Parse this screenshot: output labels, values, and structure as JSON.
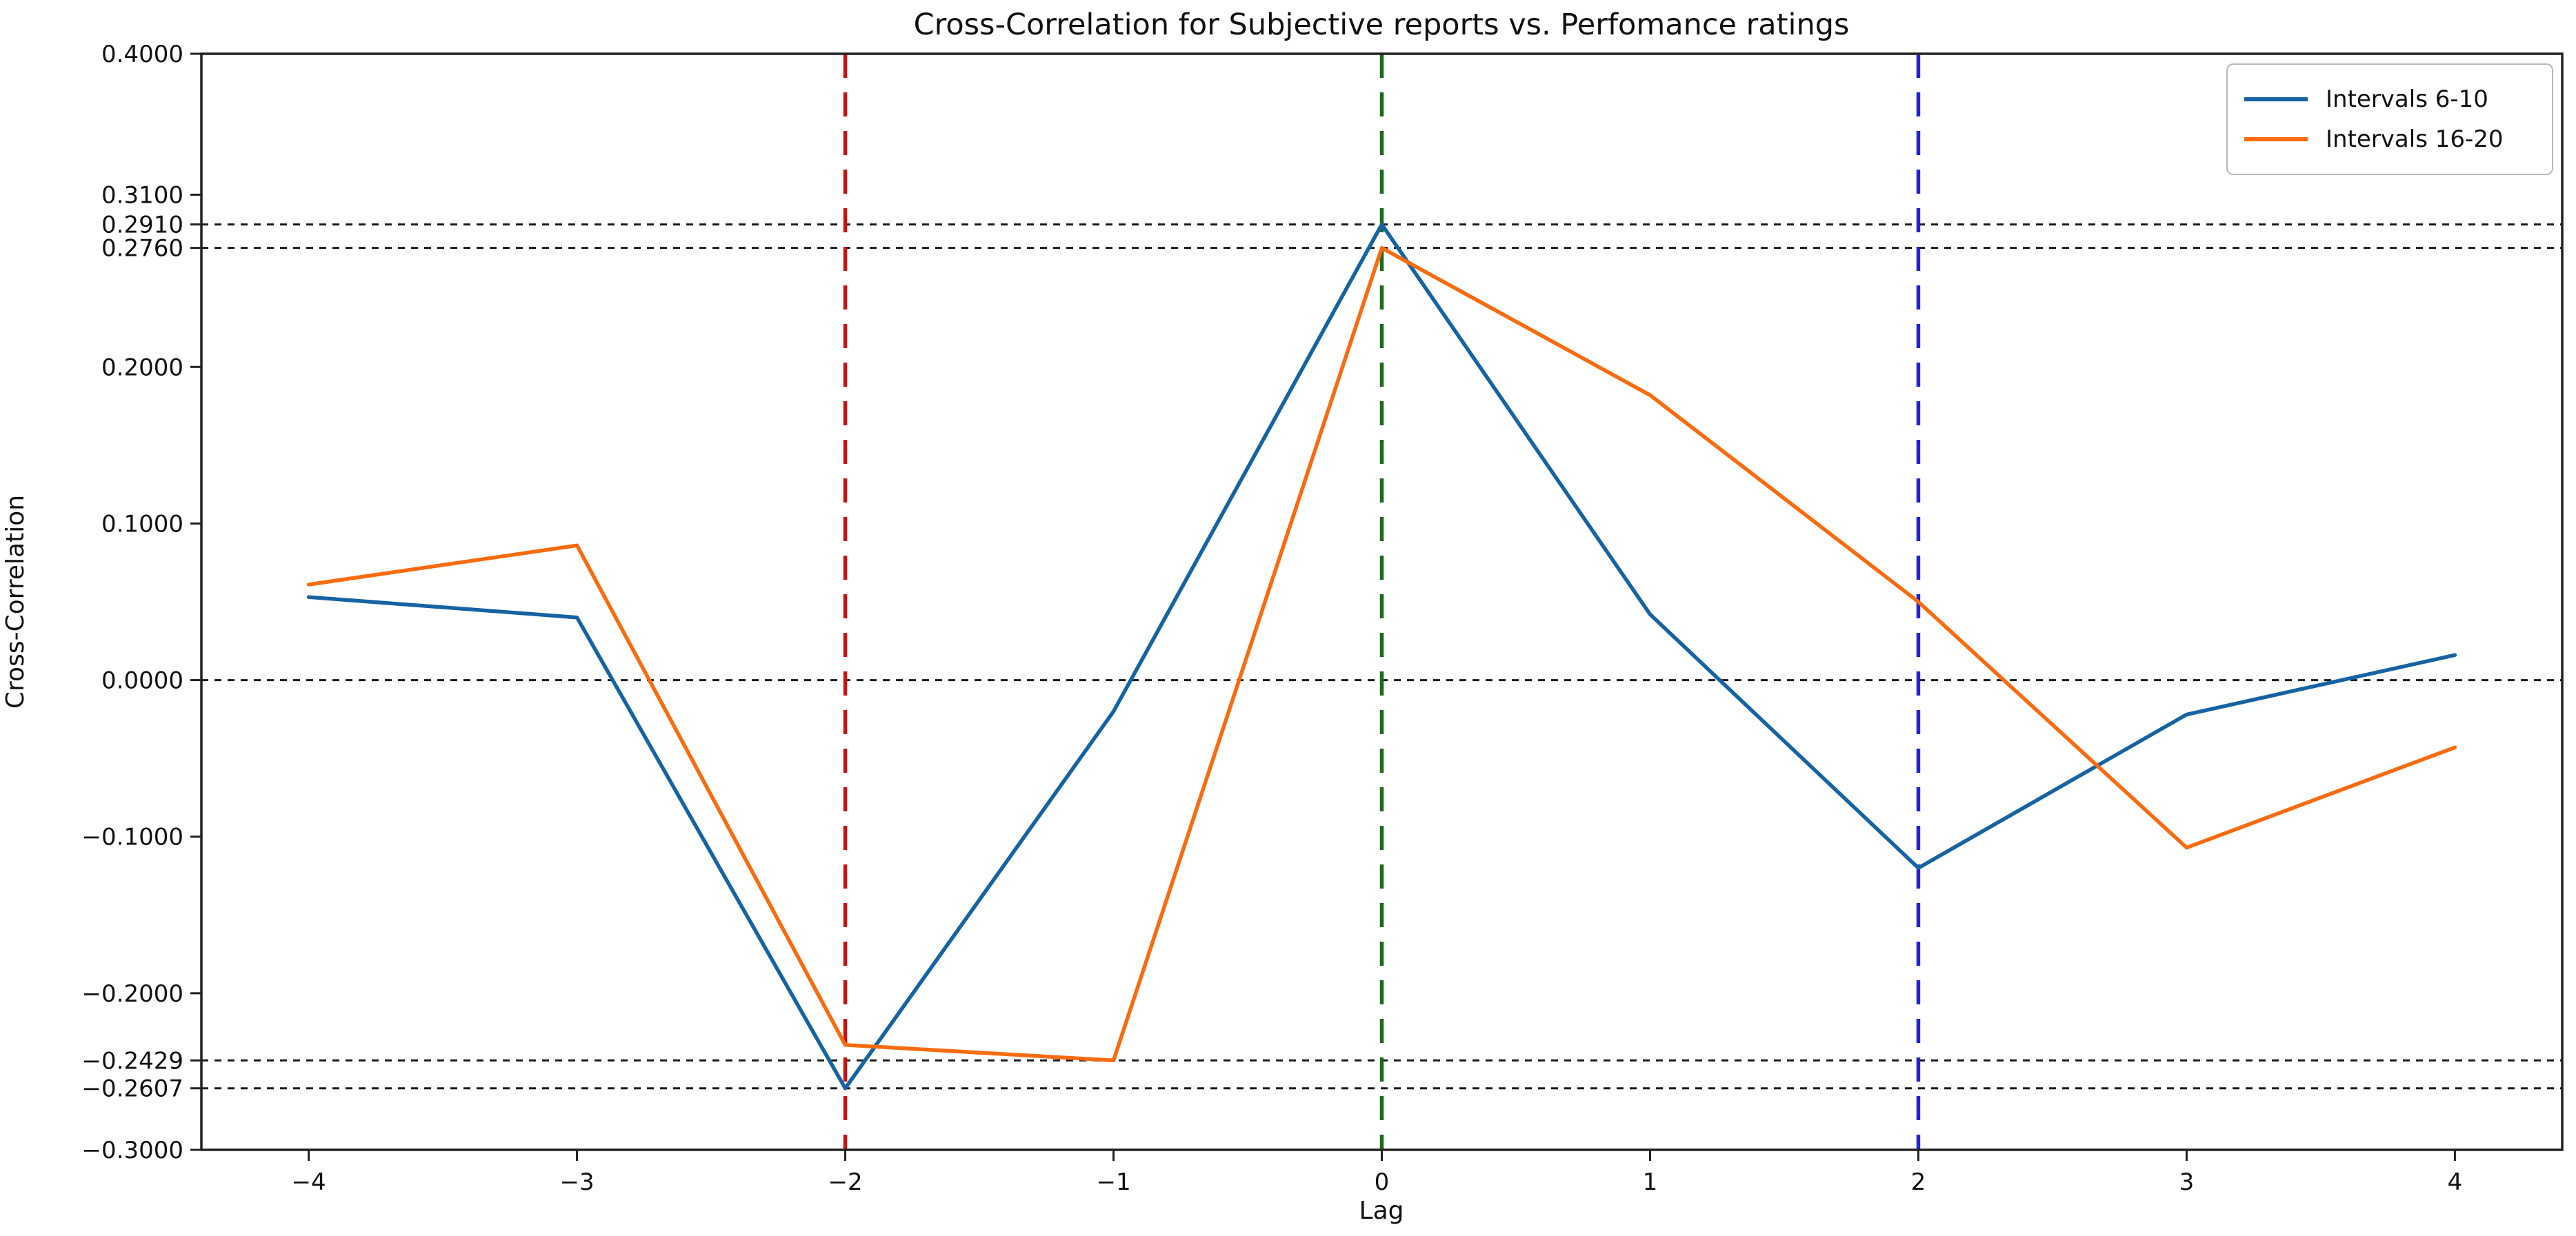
{
  "chart_data": {
    "type": "line",
    "title": "Cross-Correlation for Subjective reports vs. Perfomance ratings",
    "xlabel": "Lag",
    "ylabel": "Cross-Correlation",
    "x": [
      -4,
      -3,
      -2,
      -1,
      0,
      1,
      2,
      3,
      4
    ],
    "series": [
      {
        "name": "Intervals 6-10",
        "color": "#1563a2",
        "values": [
          0.053,
          0.04,
          -0.2607,
          -0.02,
          0.291,
          0.042,
          -0.12,
          -0.022,
          0.016
        ]
      },
      {
        "name": "Intervals 16-20",
        "color": "#f96b0e",
        "values": [
          0.061,
          0.086,
          -0.233,
          -0.2429,
          0.276,
          0.182,
          0.05,
          -0.107,
          -0.043
        ]
      }
    ],
    "xlim": [
      -4.4,
      4.4
    ],
    "ylim": [
      -0.3,
      0.4
    ],
    "grid": false,
    "legend_position": "upper right",
    "xticks": [
      {
        "value": -4,
        "label": "−4"
      },
      {
        "value": -3,
        "label": "−3"
      },
      {
        "value": -2,
        "label": "−2"
      },
      {
        "value": -1,
        "label": "−1"
      },
      {
        "value": 0,
        "label": "0"
      },
      {
        "value": 1,
        "label": "1"
      },
      {
        "value": 2,
        "label": "2"
      },
      {
        "value": 3,
        "label": "3"
      },
      {
        "value": 4,
        "label": "4"
      }
    ],
    "yticks": [
      {
        "value": 0.4,
        "label": "0.4000"
      },
      {
        "value": 0.31,
        "label": "0.3100"
      },
      {
        "value": 0.291,
        "label": "0.2910"
      },
      {
        "value": 0.276,
        "label": "0.2760"
      },
      {
        "value": 0.2,
        "label": "0.2000"
      },
      {
        "value": 0.1,
        "label": "0.1000"
      },
      {
        "value": 0.0,
        "label": "0.0000"
      },
      {
        "value": -0.1,
        "label": "−0.1000"
      },
      {
        "value": -0.2,
        "label": "−0.2000"
      },
      {
        "value": -0.2429,
        "label": "−0.2429"
      },
      {
        "value": -0.2607,
        "label": "−0.2607"
      },
      {
        "value": -0.3,
        "label": "−0.3000"
      }
    ],
    "hlines": [
      {
        "y": 0.291,
        "color": "#1a1a1a",
        "style": "dotted"
      },
      {
        "y": 0.276,
        "color": "#1a1a1a",
        "style": "dotted"
      },
      {
        "y": 0.0,
        "color": "#1a1a1a",
        "style": "dotted"
      },
      {
        "y": -0.2429,
        "color": "#1a1a1a",
        "style": "dotted"
      },
      {
        "y": -0.2607,
        "color": "#1a1a1a",
        "style": "dotted"
      }
    ],
    "vlines": [
      {
        "x": -2,
        "color": "#cf1010",
        "style": "dashed"
      },
      {
        "x": 0,
        "color": "#1a6b1a",
        "style": "dashed"
      },
      {
        "x": 2,
        "color": "#2424cc",
        "style": "dashed"
      }
    ]
  }
}
